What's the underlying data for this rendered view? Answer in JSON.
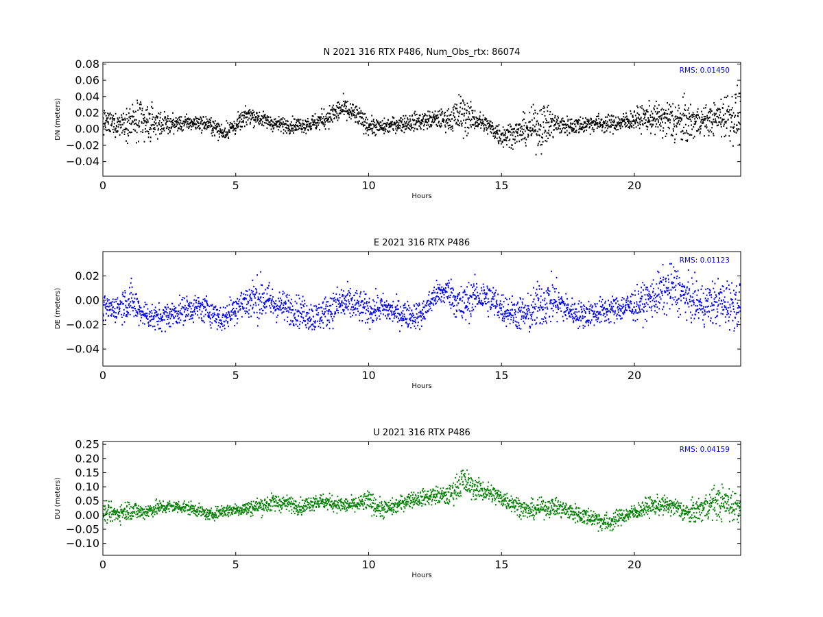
{
  "chart_data": [
    {
      "type": "scatter",
      "title": "N 2021 316 RTX  P486, Num_Obs_rtx: 86074",
      "xlabel": "Hours",
      "ylabel": "DN (meters)",
      "xlim": [
        0,
        24
      ],
      "ylim": [
        -0.058,
        0.082
      ],
      "xticks": [
        0,
        5,
        10,
        15,
        20
      ],
      "yticks": [
        -0.04,
        -0.02,
        0.0,
        0.02,
        0.04,
        0.06,
        0.08
      ],
      "ytick_labels": [
        "−0.04",
        "−0.02",
        "0.00",
        "0.02",
        "0.04",
        "0.06",
        "0.08"
      ],
      "color": "#000000",
      "rms_label": "RMS:  0.01450",
      "rms_color": "#0000ff",
      "series": [
        {
          "hours": [
            0,
            0.5,
            1,
            1.5,
            2,
            2.5,
            3,
            3.5,
            4,
            4.5,
            5,
            5.5,
            6,
            6.5,
            7,
            7.5,
            8,
            8.5,
            9,
            9.5,
            10,
            10.5,
            11,
            11.5,
            12,
            12.5,
            13,
            13.5,
            14,
            14.5,
            15,
            15.5,
            16,
            16.5,
            17,
            17.5,
            18,
            18.5,
            19,
            19.5,
            20,
            20.5,
            21,
            21.5,
            22,
            22.5,
            23,
            23.5,
            24
          ],
          "center_m": [
            0.008,
            0.006,
            0.01,
            0.005,
            0.008,
            0.006,
            0.007,
            0.008,
            0.006,
            -0.004,
            0.004,
            0.018,
            0.012,
            0.006,
            0.005,
            0.005,
            0.008,
            0.015,
            0.025,
            0.018,
            0.004,
            0.002,
            0.006,
            0.008,
            0.01,
            0.012,
            0.012,
            0.018,
            0.012,
            0.004,
            -0.008,
            -0.005,
            0.0,
            0.005,
            0.006,
            0.004,
            0.005,
            0.008,
            0.006,
            0.008,
            0.012,
            0.014,
            0.012,
            0.01,
            0.008,
            0.01,
            0.012,
            0.018,
            0.015
          ],
          "spread_m": [
            0.016,
            0.014,
            0.022,
            0.034,
            0.018,
            0.012,
            0.01,
            0.01,
            0.01,
            0.012,
            0.012,
            0.012,
            0.01,
            0.01,
            0.01,
            0.01,
            0.012,
            0.014,
            0.016,
            0.014,
            0.012,
            0.01,
            0.01,
            0.012,
            0.012,
            0.012,
            0.014,
            0.03,
            0.014,
            0.012,
            0.016,
            0.016,
            0.02,
            0.034,
            0.016,
            0.012,
            0.012,
            0.012,
            0.012,
            0.012,
            0.014,
            0.018,
            0.022,
            0.032,
            0.028,
            0.018,
            0.02,
            0.034,
            0.036
          ]
        }
      ]
    },
    {
      "type": "scatter",
      "title": "E 2021 316 RTX  P486",
      "xlabel": "Hours",
      "ylabel": "DE (meters)",
      "xlim": [
        0,
        24
      ],
      "ylim": [
        -0.054,
        0.04
      ],
      "xticks": [
        0,
        5,
        10,
        15,
        20
      ],
      "yticks": [
        -0.04,
        -0.02,
        0.0,
        0.02
      ],
      "ytick_labels": [
        "−0.04",
        "−0.02",
        "0.00",
        "0.02"
      ],
      "color": "#0000ff",
      "rms_label": "RMS:  0.01123",
      "rms_color": "#0000ff",
      "series": [
        {
          "hours": [
            0,
            0.5,
            1,
            1.5,
            2,
            2.5,
            3,
            3.5,
            4,
            4.5,
            5,
            5.5,
            6,
            6.5,
            7,
            7.5,
            8,
            8.5,
            9,
            9.5,
            10,
            10.5,
            11,
            11.5,
            12,
            12.5,
            13,
            13.5,
            14,
            14.5,
            15,
            15.5,
            16,
            16.5,
            17,
            17.5,
            18,
            18.5,
            19,
            19.5,
            20,
            20.5,
            21,
            21.5,
            22,
            22.5,
            23,
            23.5,
            24
          ],
          "center_m": [
            -0.008,
            -0.006,
            0.0,
            -0.01,
            -0.015,
            -0.012,
            -0.008,
            -0.006,
            -0.008,
            -0.016,
            -0.005,
            0.0,
            0.002,
            -0.004,
            -0.006,
            -0.01,
            -0.014,
            -0.008,
            -0.002,
            -0.004,
            -0.008,
            -0.006,
            -0.01,
            -0.012,
            -0.012,
            0.004,
            0.008,
            -0.006,
            0.004,
            0.002,
            -0.006,
            -0.01,
            -0.012,
            -0.002,
            0.0,
            -0.008,
            -0.012,
            -0.01,
            -0.008,
            -0.006,
            -0.004,
            0.0,
            0.006,
            0.01,
            0.002,
            -0.004,
            -0.002,
            -0.002,
            -0.004
          ],
          "spread_m": [
            0.012,
            0.012,
            0.018,
            0.012,
            0.012,
            0.012,
            0.012,
            0.012,
            0.012,
            0.012,
            0.014,
            0.018,
            0.02,
            0.014,
            0.014,
            0.014,
            0.014,
            0.014,
            0.018,
            0.014,
            0.014,
            0.012,
            0.012,
            0.012,
            0.012,
            0.012,
            0.012,
            0.02,
            0.014,
            0.016,
            0.014,
            0.014,
            0.018,
            0.022,
            0.02,
            0.012,
            0.012,
            0.012,
            0.012,
            0.012,
            0.014,
            0.016,
            0.02,
            0.022,
            0.018,
            0.018,
            0.02,
            0.022,
            0.02
          ]
        }
      ]
    },
    {
      "type": "scatter",
      "title": "U 2021 316 RTX  P486",
      "xlabel": "Hours",
      "ylabel": "DU (meters)",
      "xlim": [
        0,
        24
      ],
      "ylim": [
        -0.142,
        0.26
      ],
      "xticks": [
        0,
        5,
        10,
        15,
        20
      ],
      "yticks": [
        -0.1,
        -0.05,
        0.0,
        0.05,
        0.1,
        0.15,
        0.2,
        0.25
      ],
      "ytick_labels": [
        "−0.10",
        "−0.05",
        "0.00",
        "0.05",
        "0.10",
        "0.15",
        "0.20",
        "0.25"
      ],
      "color": "#008000",
      "rms_label": "RMS:  0.04159",
      "rms_color": "#0000ff",
      "series": [
        {
          "hours": [
            0,
            0.5,
            1,
            1.5,
            2,
            2.5,
            3,
            3.5,
            4,
            4.5,
            5,
            5.5,
            6,
            6.5,
            7,
            7.5,
            8,
            8.5,
            9,
            9.5,
            10,
            10.5,
            11,
            11.5,
            12,
            12.5,
            13,
            13.5,
            14,
            14.5,
            15,
            15.5,
            16,
            16.5,
            17,
            17.5,
            18,
            18.5,
            19,
            19.5,
            20,
            20.5,
            21,
            21.5,
            22,
            22.5,
            23,
            23.5,
            24
          ],
          "center_m": [
            0.01,
            0.005,
            0.02,
            0.01,
            0.025,
            0.03,
            0.03,
            0.02,
            0.0,
            0.015,
            0.02,
            0.025,
            0.035,
            0.045,
            0.04,
            0.03,
            0.05,
            0.045,
            0.035,
            0.035,
            0.05,
            0.02,
            0.03,
            0.055,
            0.06,
            0.07,
            0.065,
            0.12,
            0.095,
            0.08,
            0.06,
            0.04,
            0.015,
            0.025,
            0.03,
            0.015,
            0.0,
            -0.01,
            -0.03,
            -0.005,
            0.01,
            0.03,
            0.035,
            0.03,
            0.005,
            0.02,
            0.045,
            0.04,
            0.03
          ],
          "spread_m": [
            0.035,
            0.035,
            0.04,
            0.03,
            0.03,
            0.025,
            0.025,
            0.025,
            0.02,
            0.025,
            0.025,
            0.03,
            0.035,
            0.035,
            0.03,
            0.03,
            0.03,
            0.03,
            0.03,
            0.03,
            0.04,
            0.035,
            0.03,
            0.03,
            0.03,
            0.035,
            0.035,
            0.06,
            0.04,
            0.04,
            0.035,
            0.035,
            0.035,
            0.035,
            0.035,
            0.035,
            0.035,
            0.035,
            0.04,
            0.03,
            0.03,
            0.035,
            0.035,
            0.035,
            0.04,
            0.05,
            0.06,
            0.07,
            0.06
          ]
        }
      ]
    }
  ]
}
